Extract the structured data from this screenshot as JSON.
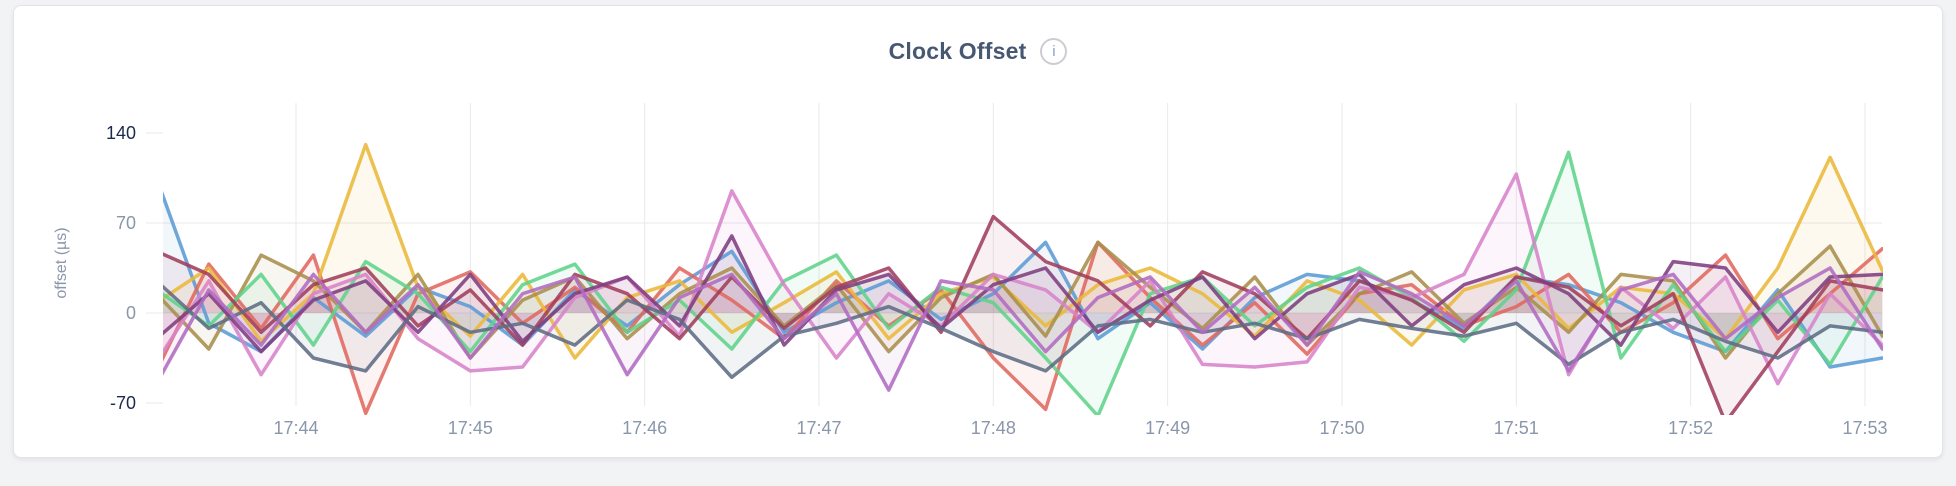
{
  "card": {
    "title": "Clock Offset",
    "info_icon_glyph": "i"
  },
  "colors": {
    "title": "#475872",
    "axis_major_label": "#1c2b4d",
    "axis_minor_label": "#8a96aa",
    "grid": "#e9e9eb",
    "card_bg": "#ffffff",
    "page_bg": "#f2f3f4"
  },
  "chart_data": {
    "type": "line",
    "title": "Clock Offset",
    "xlabel": "",
    "ylabel": "offset (µs)",
    "grid": true,
    "legend_position": "none",
    "ylim": [
      -70,
      140
    ],
    "y_ticks": [
      140,
      70,
      0,
      -70
    ],
    "y_gridline_values": [
      70,
      0
    ],
    "x_ticks": [
      "17:44",
      "17:45",
      "17:46",
      "17:47",
      "17:48",
      "17:49",
      "17:50",
      "17:51",
      "17:52",
      "17:53"
    ],
    "x_unit": "time (hh:mm), one tick per minute",
    "x_minutes_after_17_43": [
      0.2,
      0.5,
      0.8,
      1.1,
      1.4,
      1.7,
      2.0,
      2.3,
      2.6,
      2.9,
      3.2,
      3.5,
      3.8,
      4.1,
      4.4,
      4.7,
      5.0,
      5.3,
      5.6,
      5.9,
      6.2,
      6.5,
      6.8,
      7.1,
      7.4,
      7.7,
      8.0,
      8.3,
      8.6,
      8.9,
      9.2,
      9.5,
      9.8,
      10.1
    ],
    "series": [
      {
        "name": "series-blue",
        "color": "#5B9BD5",
        "values": [
          105,
          -8,
          -30,
          12,
          -18,
          20,
          5,
          -25,
          18,
          -10,
          22,
          48,
          -15,
          8,
          25,
          -5,
          15,
          55,
          -20,
          8,
          -28,
          12,
          30,
          25,
          10,
          -12,
          28,
          22,
          8,
          -15,
          -30,
          18,
          -42,
          -35
        ]
      },
      {
        "name": "series-red",
        "color": "#E0685F",
        "values": [
          -45,
          38,
          -12,
          45,
          -78,
          15,
          32,
          -8,
          20,
          -15,
          35,
          10,
          -20,
          25,
          -10,
          18,
          -35,
          -75,
          55,
          12,
          -25,
          8,
          -32,
          15,
          22,
          -10,
          5,
          30,
          -15,
          8,
          45,
          -20,
          15,
          50
        ]
      },
      {
        "name": "series-gold",
        "color": "#EAB839",
        "values": [
          8,
          35,
          -22,
          15,
          131,
          20,
          -18,
          30,
          -35,
          12,
          25,
          -15,
          8,
          32,
          -20,
          15,
          28,
          -10,
          22,
          35,
          15,
          -18,
          25,
          10,
          -25,
          18,
          30,
          -12,
          20,
          15,
          -20,
          35,
          121,
          33
        ]
      },
      {
        "name": "series-olive",
        "color": "#A98E4B",
        "values": [
          15,
          -28,
          45,
          25,
          -15,
          30,
          -35,
          10,
          28,
          -20,
          15,
          35,
          -10,
          22,
          -30,
          12,
          30,
          -18,
          55,
          20,
          -12,
          28,
          -25,
          15,
          32,
          -8,
          20,
          -15,
          30,
          25,
          -35,
          15,
          52,
          -18
        ]
      },
      {
        "name": "series-green",
        "color": "#5FD38A",
        "values": [
          18,
          -10,
          30,
          -25,
          40,
          15,
          -30,
          22,
          38,
          -15,
          10,
          -28,
          25,
          45,
          -12,
          20,
          8,
          -35,
          -80,
          15,
          28,
          -10,
          20,
          35,
          12,
          -22,
          18,
          125,
          -35,
          22,
          -30,
          10,
          -40,
          28
        ]
      },
      {
        "name": "series-orchid",
        "color": "#D783C9",
        "values": [
          -38,
          25,
          -48,
          15,
          30,
          -20,
          -45,
          -42,
          12,
          28,
          -18,
          95,
          22,
          -35,
          15,
          -10,
          30,
          18,
          -15,
          25,
          -40,
          -42,
          -38,
          20,
          12,
          30,
          108,
          -48,
          20,
          -12,
          28,
          -55,
          15,
          -25
        ]
      },
      {
        "name": "series-maroon",
        "color": "#A03E5C",
        "values": [
          48,
          30,
          -15,
          22,
          35,
          -10,
          18,
          -25,
          30,
          15,
          -20,
          28,
          -12,
          20,
          35,
          -15,
          75,
          40,
          25,
          -10,
          32,
          15,
          -20,
          25,
          10,
          -15,
          28,
          20,
          -10,
          15,
          -85,
          -30,
          25,
          18
        ]
      },
      {
        "name": "series-purple",
        "color": "#7E3D7F",
        "values": [
          -20,
          15,
          -30,
          10,
          25,
          -15,
          30,
          -22,
          15,
          28,
          -10,
          60,
          -25,
          18,
          30,
          -12,
          22,
          35,
          -15,
          10,
          28,
          -20,
          15,
          30,
          -10,
          22,
          35,
          15,
          -25,
          40,
          35,
          -15,
          28,
          30
        ]
      },
      {
        "name": "series-slate",
        "color": "#5D6C84",
        "values": [
          25,
          -12,
          8,
          -35,
          -45,
          5,
          -15,
          -8,
          -25,
          10,
          -5,
          -50,
          -18,
          -8,
          5,
          -12,
          -30,
          -45,
          -10,
          -5,
          -15,
          -8,
          -20,
          -5,
          -12,
          -18,
          -8,
          -40,
          -15,
          -5,
          -22,
          -35,
          -10,
          -15
        ]
      },
      {
        "name": "series-violet",
        "color": "#B06BC1",
        "values": [
          -55,
          18,
          -25,
          30,
          -15,
          22,
          -35,
          15,
          28,
          -48,
          12,
          30,
          -20,
          15,
          -60,
          25,
          18,
          -30,
          12,
          28,
          -15,
          20,
          -25,
          32,
          15,
          -10,
          25,
          -45,
          18,
          30,
          -20,
          12,
          35,
          -28
        ]
      }
    ]
  }
}
